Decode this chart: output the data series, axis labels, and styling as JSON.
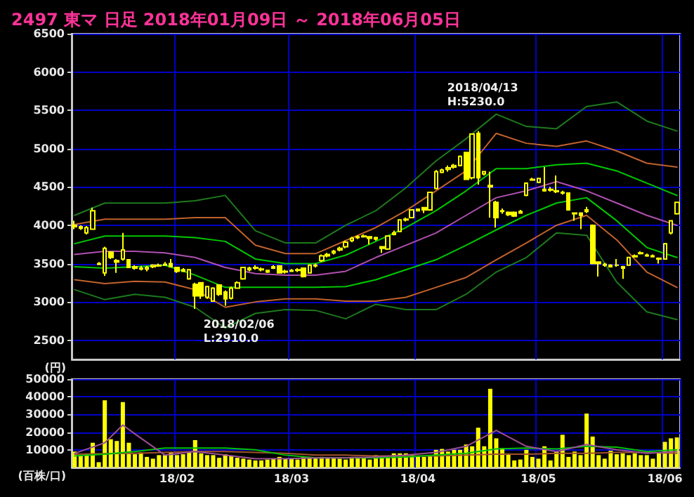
{
  "chart_data": [
    {
      "type": "candlestick",
      "title": "2497 東マ 日足 2018年01月09日 ～ 2018年06月05日",
      "ylabel": "(円)",
      "color": "#ffff00",
      "categories": [
        null,
        null,
        null,
        null,
        null,
        null,
        null,
        null,
        null,
        null,
        null,
        null,
        null,
        null,
        null,
        null,
        null,
        null,
        null,
        null,
        null,
        null,
        null,
        null,
        null,
        null,
        null,
        null,
        null,
        null,
        null,
        null,
        null,
        null,
        null,
        null,
        null,
        null,
        null,
        null,
        null,
        null,
        null,
        null,
        null,
        null,
        null,
        null,
        null,
        null,
        null,
        null,
        null,
        null,
        null,
        null,
        null,
        null,
        null,
        null,
        null,
        null,
        null,
        null,
        null,
        null,
        null,
        null,
        null,
        null,
        null,
        null,
        null,
        null,
        null,
        null,
        null,
        null,
        null,
        null,
        null,
        null,
        null,
        null,
        null,
        null,
        null,
        null,
        null,
        null,
        null,
        null,
        null,
        null,
        null,
        null,
        null,
        null,
        null,
        null,
        null
      ],
      "ohlc": [
        [
          4000,
          4060,
          3950,
          3980
        ],
        [
          3980,
          4000,
          3940,
          3960
        ],
        [
          3900,
          3990,
          3880,
          3970
        ],
        [
          3950,
          4230,
          3940,
          4190
        ],
        [
          3500,
          3520,
          3480,
          3490
        ],
        [
          3380,
          3720,
          3340,
          3700
        ],
        [
          3650,
          3660,
          3560,
          3580
        ],
        [
          3540,
          3560,
          3380,
          3520
        ],
        [
          3560,
          3900,
          3540,
          3680
        ],
        [
          3550,
          3560,
          3440,
          3450
        ],
        [
          3460,
          3480,
          3420,
          3440
        ],
        [
          3440,
          3470,
          3410,
          3430
        ],
        [
          3430,
          3470,
          3400,
          3450
        ],
        [
          3460,
          3490,
          3440,
          3480
        ],
        [
          3480,
          3500,
          3460,
          3470
        ],
        [
          3490,
          3520,
          3470,
          3480
        ],
        [
          3500,
          3560,
          3450,
          3460
        ],
        [
          3450,
          3460,
          3380,
          3400
        ],
        [
          3420,
          3440,
          3390,
          3400
        ],
        [
          3300,
          3430,
          3290,
          3420
        ],
        [
          3230,
          3250,
          2910,
          3080
        ],
        [
          3250,
          3260,
          3040,
          3080
        ],
        [
          3060,
          3210,
          3040,
          3200
        ],
        [
          3010,
          3190,
          3000,
          3180
        ],
        [
          3220,
          3230,
          3080,
          3100
        ],
        [
          3130,
          3150,
          2950,
          3040
        ],
        [
          3050,
          3200,
          3030,
          3180
        ],
        [
          3180,
          3270,
          3170,
          3250
        ],
        [
          3300,
          3460,
          3290,
          3450
        ],
        [
          3420,
          3460,
          3400,
          3440
        ],
        [
          3440,
          3480,
          3420,
          3450
        ],
        [
          3430,
          3450,
          3400,
          3420
        ],
        [
          3410,
          3420,
          3380,
          3390
        ],
        [
          3440,
          3480,
          3430,
          3460
        ],
        [
          3470,
          3480,
          3370,
          3380
        ],
        [
          3390,
          3420,
          3370,
          3400
        ],
        [
          3400,
          3430,
          3390,
          3410
        ],
        [
          3410,
          3440,
          3390,
          3420
        ],
        [
          3440,
          3450,
          3320,
          3330
        ],
        [
          3380,
          3490,
          3370,
          3480
        ],
        [
          3470,
          3500,
          3450,
          3480
        ],
        [
          3540,
          3620,
          3520,
          3600
        ],
        [
          3600,
          3640,
          3580,
          3620
        ],
        [
          3640,
          3680,
          3620,
          3660
        ],
        [
          3680,
          3720,
          3660,
          3700
        ],
        [
          3720,
          3800,
          3700,
          3780
        ],
        [
          3800,
          3850,
          3780,
          3830
        ],
        [
          3840,
          3870,
          3820,
          3850
        ],
        [
          3850,
          3880,
          3840,
          3860
        ],
        [
          3850,
          3860,
          3750,
          3830
        ],
        [
          3840,
          3850,
          3800,
          3820
        ],
        [
          3720,
          3730,
          3640,
          3700
        ],
        [
          3690,
          3870,
          3680,
          3860
        ],
        [
          3880,
          3930,
          3870,
          3900
        ],
        [
          3920,
          4080,
          3910,
          4070
        ],
        [
          4070,
          4100,
          4050,
          4080
        ],
        [
          4100,
          4210,
          4090,
          4200
        ],
        [
          4190,
          4220,
          4180,
          4210
        ],
        [
          4230,
          4240,
          4160,
          4200
        ],
        [
          4200,
          4440,
          4190,
          4430
        ],
        [
          4480,
          4720,
          4470,
          4700
        ],
        [
          4690,
          4740,
          4680,
          4720
        ],
        [
          4730,
          4780,
          4700,
          4750
        ],
        [
          4760,
          4800,
          4740,
          4780
        ],
        [
          4780,
          4910,
          4770,
          4900
        ],
        [
          4950,
          4960,
          4600,
          4600
        ],
        [
          4620,
          5200,
          4600,
          5190
        ],
        [
          5200,
          5230,
          4530,
          4620
        ],
        [
          4670,
          4700,
          4650,
          4700
        ],
        [
          4500,
          4700,
          4100,
          4520
        ],
        [
          4300,
          4320,
          3970,
          4100
        ],
        [
          4180,
          4220,
          4150,
          4190
        ],
        [
          4170,
          4180,
          4120,
          4140
        ],
        [
          4170,
          4180,
          4110,
          4120
        ],
        [
          4160,
          4200,
          4150,
          4180
        ],
        [
          4390,
          4560,
          4380,
          4550
        ],
        [
          4590,
          4620,
          4580,
          4600
        ],
        [
          4560,
          4620,
          4550,
          4610
        ],
        [
          4470,
          4760,
          4440,
          4450
        ],
        [
          4460,
          4500,
          4440,
          4470
        ],
        [
          4440,
          4650,
          4420,
          4450
        ],
        [
          4430,
          4450,
          4400,
          4420
        ],
        [
          4420,
          4430,
          4200,
          4200
        ],
        [
          4160,
          4170,
          4060,
          4150
        ],
        [
          4160,
          4170,
          3950,
          4130
        ],
        [
          4180,
          4240,
          4160,
          4200
        ],
        [
          4000,
          4010,
          3490,
          3500
        ],
        [
          3520,
          3530,
          3330,
          3500
        ],
        [
          3490,
          3510,
          3460,
          3480
        ],
        [
          3480,
          3490,
          3450,
          3460
        ],
        [
          3480,
          3560,
          3460,
          3480
        ],
        [
          3460,
          3470,
          3300,
          3440
        ],
        [
          3480,
          3590,
          3470,
          3580
        ],
        [
          3590,
          3620,
          3580,
          3600
        ],
        [
          3630,
          3660,
          3620,
          3640
        ],
        [
          3610,
          3630,
          3590,
          3600
        ],
        [
          3590,
          3620,
          3580,
          3600
        ],
        [
          3570,
          3580,
          3500,
          3560
        ],
        [
          3560,
          3770,
          3550,
          3760
        ],
        [
          3900,
          4060,
          3880,
          4060
        ],
        [
          4150,
          4300,
          4140,
          4300
        ]
      ],
      "series": [
        {
          "type": "line",
          "color": "#1d7a1d",
          "values": [
            4130,
            null,
            null,
            null,
            null,
            4290,
            null,
            null,
            null,
            null,
            4290,
            null,
            null,
            null,
            null,
            4290,
            null,
            null,
            null,
            null,
            4320,
            null,
            null,
            null,
            null,
            4390,
            null,
            null,
            null,
            null,
            3930,
            null,
            null,
            null,
            null,
            3770,
            null,
            null,
            null,
            null,
            3770,
            null,
            null,
            null,
            null,
            4000,
            null,
            null,
            null,
            null,
            4190,
            null,
            null,
            null,
            null,
            4490,
            null,
            null,
            null,
            null,
            4840,
            null,
            null,
            null,
            null,
            5130,
            null,
            null,
            null,
            null,
            5450,
            null,
            null,
            null,
            null,
            5290,
            null,
            null,
            null,
            null,
            5260,
            null,
            null,
            null,
            null,
            5550,
            null,
            null,
            null,
            null,
            5610,
            null,
            null,
            null,
            null,
            5360,
            null,
            null,
            null,
            null,
            5230
          ]
        },
        {
          "type": "line",
          "color": "#c0622d",
          "values": [
            4010,
            null,
            null,
            null,
            null,
            4080,
            null,
            null,
            null,
            null,
            4080,
            null,
            null,
            null,
            null,
            4080,
            null,
            null,
            null,
            null,
            4100,
            null,
            null,
            null,
            null,
            4100,
            null,
            null,
            null,
            null,
            3740,
            null,
            null,
            null,
            null,
            3630,
            null,
            null,
            null,
            null,
            3630,
            null,
            null,
            null,
            null,
            3800,
            null,
            null,
            null,
            null,
            3970,
            null,
            null,
            null,
            null,
            4190,
            null,
            null,
            null,
            null,
            4450,
            null,
            null,
            null,
            null,
            4710,
            null,
            null,
            null,
            null,
            5200,
            null,
            null,
            null,
            null,
            5070,
            null,
            null,
            null,
            null,
            5030,
            null,
            null,
            null,
            null,
            5100,
            null,
            null,
            null,
            null,
            4970,
            null,
            null,
            null,
            null,
            4810,
            null,
            null,
            null,
            null,
            4760
          ]
        },
        {
          "type": "line",
          "color": "#00c800",
          "values": [
            3760,
            null,
            null,
            null,
            null,
            3860,
            null,
            null,
            null,
            null,
            3860,
            null,
            null,
            null,
            null,
            3860,
            null,
            null,
            null,
            null,
            3840,
            null,
            null,
            null,
            null,
            3790,
            null,
            null,
            null,
            null,
            3560,
            null,
            null,
            null,
            null,
            3500,
            null,
            null,
            null,
            null,
            3500,
            null,
            null,
            null,
            null,
            3610,
            null,
            null,
            null,
            null,
            3790,
            null,
            null,
            null,
            null,
            3970,
            null,
            null,
            null,
            null,
            4190,
            null,
            null,
            null,
            null,
            4450,
            null,
            null,
            null,
            null,
            4740,
            null,
            null,
            null,
            null,
            4740,
            null,
            null,
            null,
            null,
            4790,
            null,
            null,
            null,
            null,
            4810,
            null,
            null,
            null,
            null,
            4710,
            null,
            null,
            null,
            null,
            4550,
            null,
            null,
            null,
            null,
            4390
          ]
        },
        {
          "type": "line",
          "color": "#b050b0",
          "values": [
            3620,
            null,
            null,
            null,
            null,
            3660,
            null,
            null,
            null,
            null,
            3660,
            null,
            null,
            null,
            null,
            3640,
            null,
            null,
            null,
            null,
            3580,
            null,
            null,
            null,
            null,
            3450,
            null,
            null,
            null,
            null,
            3370,
            null,
            null,
            null,
            null,
            3350,
            null,
            null,
            null,
            null,
            3350,
            null,
            null,
            null,
            null,
            3400,
            null,
            null,
            null,
            null,
            3580,
            null,
            null,
            null,
            null,
            3740,
            null,
            null,
            null,
            null,
            3900,
            null,
            null,
            null,
            null,
            4130,
            null,
            null,
            null,
            null,
            4360,
            null,
            null,
            null,
            null,
            4450,
            null,
            null,
            null,
            null,
            4570,
            null,
            null,
            null,
            null,
            4450,
            null,
            null,
            null,
            null,
            4290,
            null,
            null,
            null,
            null,
            4130,
            null,
            null,
            null,
            null,
            4000
          ]
        },
        {
          "type": "line",
          "color": "#00c800",
          "values": [
            3460,
            null,
            null,
            null,
            null,
            3440,
            null,
            null,
            null,
            null,
            3460,
            null,
            null,
            null,
            null,
            3480,
            null,
            null,
            null,
            null,
            3350,
            null,
            null,
            null,
            null,
            3190,
            null,
            null,
            null,
            null,
            3190,
            null,
            null,
            null,
            null,
            3190,
            null,
            null,
            null,
            null,
            3190,
            null,
            null,
            null,
            null,
            3200,
            null,
            null,
            null,
            null,
            3290,
            null,
            null,
            null,
            null,
            3420,
            null,
            null,
            null,
            null,
            3550,
            null,
            null,
            null,
            null,
            3740,
            null,
            null,
            null,
            null,
            3940,
            null,
            null,
            null,
            null,
            4130,
            null,
            null,
            null,
            null,
            4290,
            null,
            null,
            null,
            null,
            4360,
            null,
            null,
            null,
            null,
            4060,
            null,
            null,
            null,
            null,
            3710,
            null,
            null,
            null,
            null,
            3580
          ]
        },
        {
          "type": "line",
          "color": "#c0622d",
          "values": [
            3290,
            null,
            null,
            null,
            null,
            3240,
            null,
            null,
            null,
            null,
            3270,
            null,
            null,
            null,
            null,
            3260,
            null,
            null,
            null,
            null,
            3160,
            null,
            null,
            null,
            null,
            2930,
            null,
            null,
            null,
            null,
            3000,
            null,
            null,
            null,
            null,
            3040,
            null,
            null,
            null,
            null,
            3040,
            null,
            null,
            null,
            null,
            3010,
            null,
            null,
            null,
            null,
            3010,
            null,
            null,
            null,
            null,
            3060,
            null,
            null,
            null,
            null,
            3190,
            null,
            null,
            null,
            null,
            3320,
            null,
            null,
            null,
            null,
            3550,
            null,
            null,
            null,
            null,
            3770,
            null,
            null,
            null,
            null,
            4000,
            null,
            null,
            null,
            null,
            4130,
            null,
            null,
            null,
            null,
            3810,
            null,
            null,
            null,
            null,
            3390,
            null,
            null,
            null,
            null,
            3190
          ]
        },
        {
          "type": "line",
          "color": "#1d7a1d",
          "values": [
            3160,
            null,
            null,
            null,
            null,
            3030,
            null,
            null,
            null,
            null,
            3100,
            null,
            null,
            null,
            null,
            3060,
            null,
            null,
            null,
            null,
            2930,
            null,
            null,
            null,
            null,
            2660,
            null,
            null,
            null,
            null,
            2850,
            null,
            null,
            null,
            null,
            2900,
            null,
            null,
            null,
            null,
            2890,
            null,
            null,
            null,
            null,
            2780,
            null,
            null,
            null,
            null,
            2970,
            null,
            null,
            null,
            null,
            2900,
            null,
            null,
            null,
            null,
            2900,
            null,
            null,
            null,
            null,
            3100,
            null,
            null,
            null,
            null,
            3390,
            null,
            null,
            null,
            null,
            3580,
            null,
            null,
            null,
            null,
            3900,
            null,
            null,
            null,
            null,
            3870,
            null,
            null,
            null,
            null,
            3260,
            null,
            null,
            null,
            null,
            2870,
            null,
            null,
            null,
            null,
            2770
          ]
        }
      ],
      "annotations": [
        {
          "text": "2018/02/06\nL:2910.0",
          "y": 2910
        },
        {
          "text": "2018/04/13\nH:5230.0",
          "y": 5230
        }
      ],
      "ylim": [
        2250,
        6500
      ],
      "yticks": [
        2500,
        3000,
        3500,
        4000,
        4500,
        5000,
        5500,
        6000,
        6500
      ],
      "grid": true,
      "tick_labels": "y"
    },
    {
      "type": "bar",
      "ylabel": "(百株/口)",
      "categories": [
        null,
        null,
        null,
        null,
        null,
        null,
        null,
        null,
        null,
        null,
        null,
        null,
        null,
        null,
        null,
        null,
        null,
        "18/02",
        null,
        null,
        null,
        null,
        null,
        null,
        null,
        null,
        null,
        null,
        null,
        null,
        null,
        null,
        null,
        null,
        null,
        null,
        "18/03",
        null,
        null,
        null,
        null,
        null,
        null,
        null,
        null,
        null,
        null,
        null,
        null,
        null,
        null,
        null,
        null,
        null,
        null,
        null,
        null,
        "18/04",
        null,
        null,
        null,
        null,
        null,
        null,
        null,
        null,
        null,
        null,
        null,
        null,
        null,
        null,
        null,
        null,
        null,
        null,
        null,
        "18/05",
        null,
        null,
        null,
        null,
        null,
        null,
        null,
        null,
        null,
        null,
        null,
        null,
        null,
        null,
        null,
        null,
        null,
        null,
        null,
        null,
        "18/06",
        null,
        null
      ],
      "series": [
        {
          "type": "bar",
          "color": "#ffff00",
          "values": [
            9000,
            7000,
            7500,
            14000,
            3000,
            38000,
            16000,
            15000,
            37000,
            14000,
            7500,
            8500,
            6000,
            5000,
            7000,
            7000,
            8500,
            7000,
            7500,
            9000,
            15500,
            8000,
            7000,
            7000,
            5500,
            7500,
            6500,
            5500,
            5000,
            4500,
            4000,
            4000,
            4500,
            5000,
            6000,
            5000,
            5000,
            4500,
            6000,
            6000,
            5500,
            6000,
            5500,
            5500,
            5000,
            4500,
            6000,
            6000,
            5500,
            4500,
            7000,
            6000,
            6000,
            8000,
            8000,
            8000,
            7500,
            6500,
            6000,
            6500,
            10000,
            10500,
            9000,
            10000,
            10000,
            13000,
            12000,
            22500,
            12000,
            44500,
            16500,
            11000,
            8000,
            4000,
            4500,
            10000,
            6000,
            5000,
            12000,
            4000,
            9000,
            18500,
            6000,
            9000,
            7000,
            30500,
            17500,
            7000,
            5000,
            9500,
            7500,
            8000,
            7000,
            8000,
            7000,
            7000,
            5000,
            8000,
            14500,
            16500,
            17000
          ]
        },
        {
          "type": "line",
          "color": "#a0522d",
          "values": [
            7500,
            null,
            null,
            null,
            null,
            7800,
            null,
            null,
            null,
            null,
            8000,
            null,
            null,
            null,
            null,
            8500,
            null,
            null,
            null,
            null,
            9000,
            null,
            null,
            null,
            null,
            9000,
            null,
            null,
            null,
            null,
            8500,
            null,
            null,
            null,
            null,
            8000,
            null,
            null,
            null,
            null,
            7000,
            null,
            null,
            null,
            null,
            7000,
            null,
            null,
            null,
            null,
            6500,
            null,
            null,
            null,
            null,
            6500,
            null,
            null,
            null,
            null,
            6500,
            null,
            null,
            null,
            null,
            7000,
            null,
            null,
            null,
            null,
            7500,
            null,
            null,
            null,
            null,
            7500,
            null,
            null,
            null,
            null,
            8000,
            null,
            null,
            null,
            null,
            8000,
            null,
            null,
            null,
            null,
            8500,
            null,
            null,
            null,
            null,
            8500,
            null,
            null,
            null,
            null,
            8000
          ]
        },
        {
          "type": "line",
          "color": "#00c000",
          "values": [
            6500,
            null,
            null,
            null,
            null,
            7500,
            null,
            null,
            null,
            null,
            9000,
            null,
            null,
            null,
            null,
            11000,
            null,
            null,
            null,
            null,
            11000,
            null,
            null,
            null,
            null,
            11000,
            null,
            null,
            null,
            null,
            10000,
            null,
            null,
            null,
            null,
            7000,
            null,
            null,
            null,
            null,
            5500,
            null,
            null,
            null,
            null,
            5500,
            null,
            null,
            null,
            null,
            5500,
            null,
            null,
            null,
            null,
            6000,
            null,
            null,
            null,
            null,
            7000,
            null,
            null,
            null,
            null,
            8000,
            null,
            null,
            null,
            null,
            10500,
            null,
            null,
            null,
            null,
            11000,
            null,
            null,
            null,
            null,
            10500,
            null,
            null,
            null,
            null,
            12000,
            null,
            null,
            null,
            null,
            11500,
            null,
            null,
            null,
            null,
            9000,
            null,
            null,
            null,
            null,
            10000
          ]
        },
        {
          "type": "line",
          "color": "#9b4f96",
          "values": [
            8000,
            null,
            null,
            null,
            null,
            14000,
            null,
            null,
            24000,
            null,
            19000,
            null,
            null,
            null,
            null,
            7000,
            null,
            null,
            null,
            null,
            9000,
            null,
            null,
            null,
            null,
            7000,
            null,
            null,
            null,
            null,
            5000,
            null,
            null,
            null,
            null,
            5000,
            null,
            null,
            null,
            null,
            5500,
            null,
            null,
            null,
            null,
            5500,
            null,
            null,
            null,
            null,
            6000,
            null,
            null,
            null,
            null,
            7000,
            null,
            null,
            null,
            null,
            8500,
            null,
            null,
            null,
            null,
            12000,
            null,
            null,
            null,
            null,
            21000,
            null,
            null,
            null,
            null,
            12000,
            null,
            null,
            null,
            null,
            9000,
            null,
            null,
            null,
            null,
            13000,
            null,
            null,
            null,
            null,
            10000,
            null,
            null,
            null,
            null,
            8000,
            null,
            null,
            null,
            null,
            9000
          ]
        }
      ],
      "ylim": [
        0,
        50000
      ],
      "yticks": [
        10000,
        20000,
        30000,
        40000,
        50000
      ],
      "grid": true
    }
  ]
}
